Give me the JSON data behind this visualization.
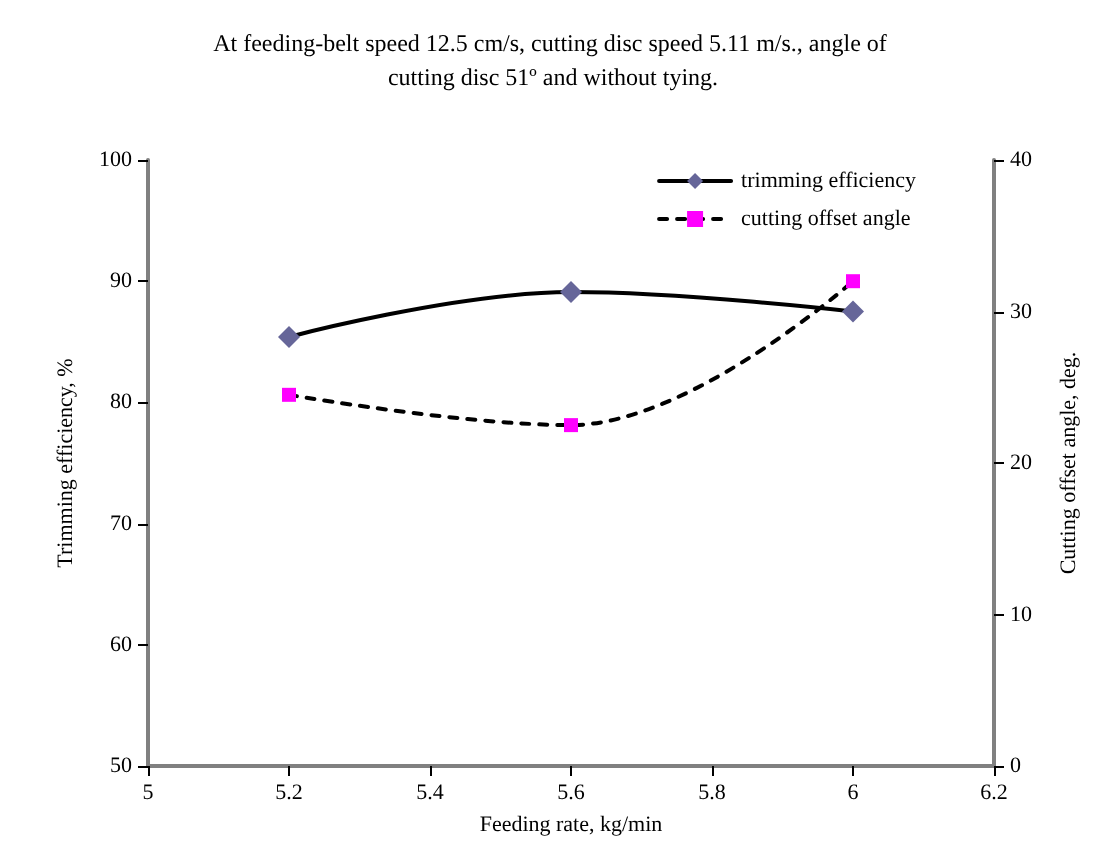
{
  "chart_data": {
    "type": "line",
    "title": "At feeding-belt speed 12.5 cm/s, cutting disc speed 5.11 m/s., angle of cutting disc 51º and without tying.",
    "xlabel": "Feeding rate, kg/min",
    "ylabel": "Trimming efficiency, %",
    "y2label": "Cutting offset angle, deg.",
    "x": [
      5.2,
      5.6,
      6.0
    ],
    "series": [
      {
        "name": "trimming efficiency",
        "color": "#666699",
        "values": [
          85.4,
          89.1,
          87.5
        ],
        "marker": "diamond",
        "line_style": "solid"
      },
      {
        "name": "cutting offset angle",
        "color": "#ff00ff",
        "values": [
          24.5,
          22.5,
          32.0
        ],
        "axis": "y2",
        "marker": "square",
        "line_style": "dashed"
      }
    ],
    "xlim": [
      5,
      6.2
    ],
    "xticks": [
      5,
      5.2,
      5.4,
      5.6,
      5.8,
      6,
      6.2
    ],
    "ylim": [
      50,
      100
    ],
    "yticks": [
      50,
      60,
      70,
      80,
      90,
      100
    ],
    "y2lim": [
      0,
      40
    ],
    "y2ticks": [
      0,
      10,
      20,
      30,
      40
    ],
    "grid": false,
    "legend": "top right"
  }
}
